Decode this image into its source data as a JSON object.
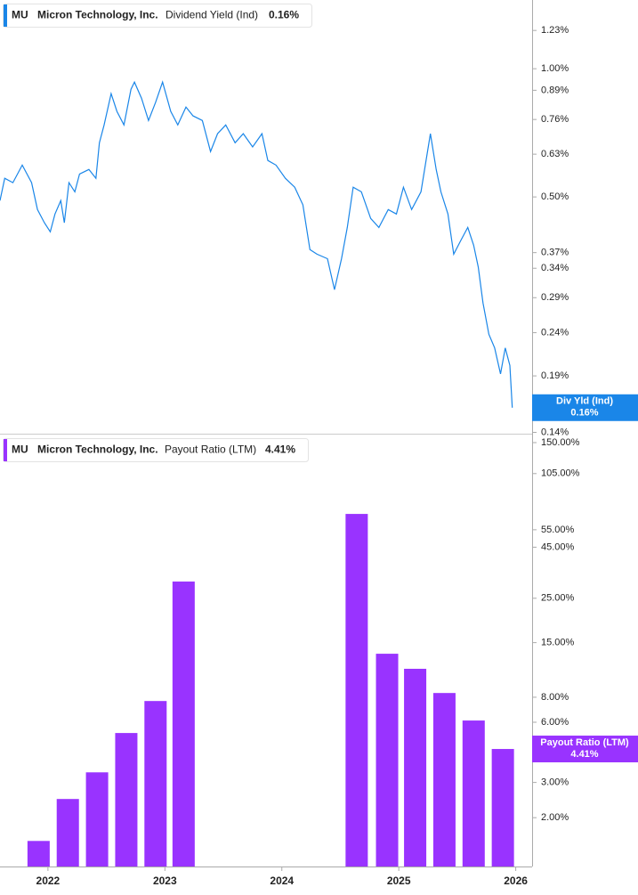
{
  "chart_data": [
    {
      "type": "line",
      "ticker": "MU",
      "company": "Micron Technology, Inc.",
      "log_scale": true,
      "x": [
        2021.59,
        2021.63,
        2021.7,
        2021.78,
        2021.86,
        2021.91,
        2021.97,
        2022.02,
        2022.06,
        2022.11,
        2022.14,
        2022.18,
        2022.23,
        2022.27,
        2022.35,
        2022.41,
        2022.44,
        2022.48,
        2022.54,
        2022.59,
        2022.65,
        2022.71,
        2022.74,
        2022.8,
        2022.86,
        2022.92,
        2022.98,
        2023.05,
        2023.11,
        2023.18,
        2023.24,
        2023.32,
        2023.39,
        2023.45,
        2023.52,
        2023.6,
        2023.67,
        2023.75,
        2023.83,
        2023.88,
        2023.95,
        2024.03,
        2024.11,
        2024.18,
        2024.24,
        2024.3,
        2024.39,
        2024.45,
        2024.51,
        2024.56,
        2024.61,
        2024.68,
        2024.76,
        2024.83,
        2024.91,
        2024.98,
        2025.04,
        2025.11,
        2025.19,
        2025.27,
        2025.32,
        2025.36,
        2025.42,
        2025.47,
        2025.53,
        2025.59,
        2025.64,
        2025.68,
        2025.72,
        2025.77,
        2025.82,
        2025.87,
        2025.91,
        2025.95,
        2025.97
      ],
      "series": [
        {
          "name": "Dividend Yield (Ind)",
          "short_name": "Div Yld (Ind)",
          "color": "#1a86e8",
          "last_label": "0.16%",
          "values": [
            0.49,
            0.553,
            0.54,
            0.594,
            0.54,
            0.467,
            0.435,
            0.414,
            0.456,
            0.49,
            0.435,
            0.54,
            0.514,
            0.566,
            0.58,
            0.553,
            0.67,
            0.738,
            0.874,
            0.794,
            0.738,
            0.895,
            0.93,
            0.853,
            0.756,
            0.833,
            0.93,
            0.794,
            0.738,
            0.813,
            0.775,
            0.756,
            0.639,
            0.704,
            0.738,
            0.67,
            0.704,
            0.655,
            0.704,
            0.609,
            0.594,
            0.553,
            0.527,
            0.479,
            0.376,
            0.367,
            0.358,
            0.303,
            0.358,
            0.424,
            0.527,
            0.514,
            0.445,
            0.424,
            0.467,
            0.456,
            0.527,
            0.467,
            0.514,
            0.704,
            0.58,
            0.514,
            0.456,
            0.367,
            0.395,
            0.424,
            0.385,
            0.342,
            0.282,
            0.238,
            0.221,
            0.192,
            0.221,
            0.201,
            0.16
          ]
        }
      ],
      "xlim": [
        2021.59,
        2026.14
      ],
      "ylim": [
        0.139,
        1.45
      ],
      "yticks": [
        {
          "value": 1.23,
          "label": "1.23%"
        },
        {
          "value": 1.0,
          "label": "1.00%"
        },
        {
          "value": 0.89,
          "label": "0.89%"
        },
        {
          "value": 0.76,
          "label": "0.76%"
        },
        {
          "value": 0.63,
          "label": "0.63%"
        },
        {
          "value": 0.5,
          "label": "0.50%"
        },
        {
          "value": 0.37,
          "label": "0.37%"
        },
        {
          "value": 0.34,
          "label": "0.34%"
        },
        {
          "value": 0.29,
          "label": "0.29%"
        },
        {
          "value": 0.24,
          "label": "0.24%"
        },
        {
          "value": 0.19,
          "label": "0.19%"
        },
        {
          "value": 0.14,
          "label": "0.14%"
        }
      ]
    },
    {
      "type": "bar",
      "ticker": "MU",
      "company": "Micron Technology, Inc.",
      "log_scale": true,
      "x": [
        2021.92,
        2022.17,
        2022.42,
        2022.67,
        2022.92,
        2023.16,
        2024.64,
        2024.9,
        2025.14,
        2025.39,
        2025.64,
        2025.89
      ],
      "series": [
        {
          "name": "Payout Ratio (LTM)",
          "color": "#9933ff",
          "last_label": "4.41%",
          "values": [
            1.53,
            2.48,
            3.37,
            5.3,
            7.66,
            30.3,
            66.0,
            13.2,
            11.1,
            8.4,
            6.12,
            4.41
          ]
        }
      ],
      "xlim": [
        2021.59,
        2026.14
      ],
      "xticks": [
        2022,
        2023,
        2024,
        2025,
        2026
      ],
      "ylim": [
        1.14,
        164.5
      ],
      "yticks": [
        {
          "value": 150,
          "label": "150.00%"
        },
        {
          "value": 105,
          "label": "105.00%"
        },
        {
          "value": 55,
          "label": "55.00%"
        },
        {
          "value": 45,
          "label": "45.00%"
        },
        {
          "value": 25,
          "label": "25.00%"
        },
        {
          "value": 15,
          "label": "15.00%"
        },
        {
          "value": 8,
          "label": "8.00%"
        },
        {
          "value": 6,
          "label": "6.00%"
        },
        {
          "value": 3,
          "label": "3.00%"
        },
        {
          "value": 2,
          "label": "2.00%"
        }
      ]
    }
  ]
}
